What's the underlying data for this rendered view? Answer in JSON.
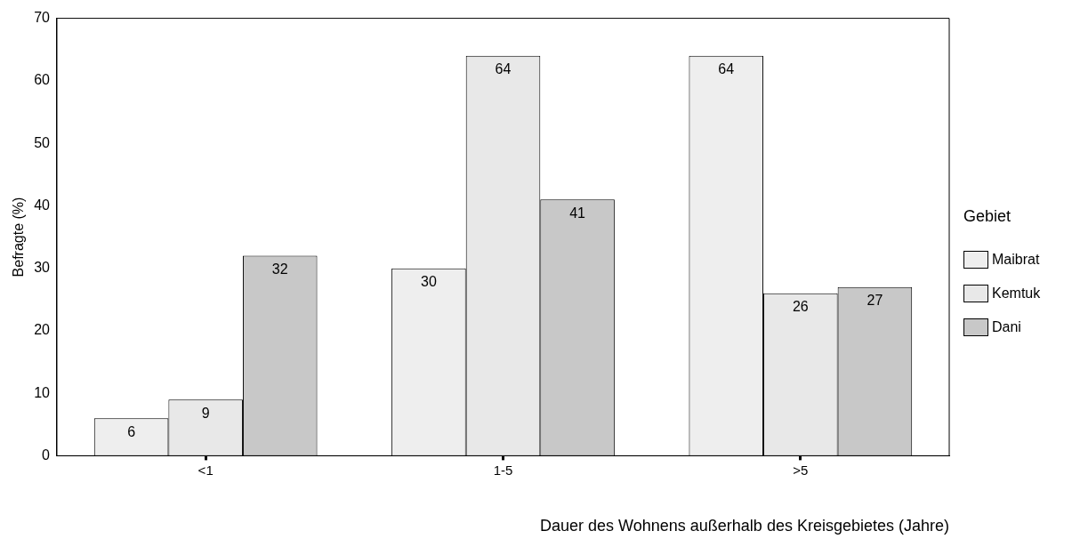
{
  "chart_data": {
    "type": "bar",
    "xlabel": "Dauer des Wohnens außerhalb des Kreisgebietes (Jahre)",
    "ylabel": "Befragte (%)",
    "categories": [
      "<1",
      "1-5",
      ">5"
    ],
    "series": [
      {
        "name": "Maibrat",
        "color": "#eeeeee",
        "values": [
          6,
          30,
          64
        ]
      },
      {
        "name": "Kemtuk",
        "color": "#e8e8e8",
        "values": [
          9,
          64,
          26
        ]
      },
      {
        "name": "Dani",
        "color": "#c8c8c8",
        "values": [
          32,
          41,
          27
        ]
      }
    ],
    "ylim": [
      0,
      70
    ],
    "yticks": [
      0,
      10,
      20,
      30,
      40,
      50,
      60,
      70
    ],
    "grid": false,
    "legend": "right",
    "legend_title": "Gebiet",
    "data_labels": true
  }
}
